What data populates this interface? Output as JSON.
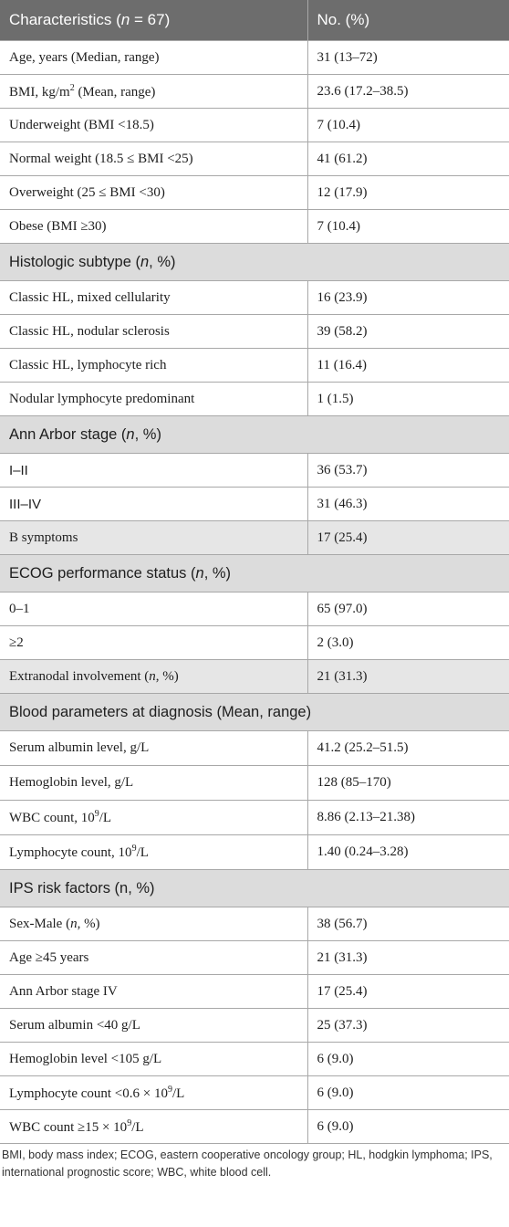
{
  "header": {
    "col1_pre": "Characteristics (",
    "col1_n": "n",
    "col1_post": " = 67)",
    "col2": "No. (%)"
  },
  "rows": [
    {
      "type": "row",
      "label": "Age, years (Median, range)",
      "value": "31 (13–72)"
    },
    {
      "type": "row",
      "label_pre": "BMI, kg/m",
      "label_sup": "2",
      "label_post": " (Mean, range)",
      "value": "23.6 (17.2–38.5)"
    },
    {
      "type": "row",
      "label": "Underweight (BMI <18.5)",
      "value": "7 (10.4)"
    },
    {
      "type": "row",
      "label": "Normal weight (18.5 ≤ BMI <25)",
      "value": "41 (61.2)"
    },
    {
      "type": "row",
      "label": "Overweight (25 ≤ BMI <30)",
      "value": "12 (17.9)"
    },
    {
      "type": "row",
      "label": "Obese (BMI ≥30)",
      "value": "7 (10.4)"
    },
    {
      "type": "section",
      "label_pre": "Histologic subtype (",
      "label_n": "n",
      "label_post": ", %)"
    },
    {
      "type": "row",
      "label": "Classic HL, mixed cellularity",
      "value": "16 (23.9)"
    },
    {
      "type": "row",
      "label": "Classic HL, nodular sclerosis",
      "value": "39 (58.2)"
    },
    {
      "type": "row",
      "label": "Classic HL, lymphocyte rich",
      "value": "11 (16.4)"
    },
    {
      "type": "row",
      "label": "Nodular lymphocyte predominant",
      "value": "1 (1.5)"
    },
    {
      "type": "section",
      "label_pre": "Ann Arbor stage (",
      "label_n": "n",
      "label_post": ", %)"
    },
    {
      "type": "row",
      "label": "I–II",
      "value": "36 (53.7)",
      "sans": true
    },
    {
      "type": "row",
      "label": "III–IV",
      "value": "31 (46.3)",
      "sans": true
    },
    {
      "type": "shade",
      "label": "B symptoms",
      "value": "17 (25.4)"
    },
    {
      "type": "section",
      "label_pre": "ECOG performance status (",
      "label_n": "n",
      "label_post": ", %)"
    },
    {
      "type": "row",
      "label": "0–1",
      "value": "65 (97.0)"
    },
    {
      "type": "row",
      "label": "≥2",
      "value": "2 (3.0)"
    },
    {
      "type": "shade",
      "label_pre": "Extranodal involvement (",
      "label_n": "n",
      "label_post": ", %)",
      "value": "21 (31.3)"
    },
    {
      "type": "section",
      "label": "Blood parameters at diagnosis (Mean, range)"
    },
    {
      "type": "row",
      "label": "Serum albumin level, g/L",
      "value": "41.2 (25.2–51.5)"
    },
    {
      "type": "row",
      "label": "Hemoglobin level, g/L",
      "value": "128 (85–170)"
    },
    {
      "type": "row",
      "label_pre": "WBC count, 10",
      "label_sup": "9",
      "label_post": "/L",
      "value": "8.86 (2.13–21.38)"
    },
    {
      "type": "row",
      "label_pre": "Lymphocyte count, 10",
      "label_sup": "9",
      "label_post": "/L",
      "value": "1.40 (0.24–3.28)"
    },
    {
      "type": "section",
      "label": "IPS risk factors (n, %)"
    },
    {
      "type": "row",
      "label_pre": "Sex-Male (",
      "label_n": "n",
      "label_post": ", %)",
      "value": "38 (56.7)"
    },
    {
      "type": "row",
      "label": "Age ≥45 years",
      "value": "21 (31.3)"
    },
    {
      "type": "row",
      "label": "Ann Arbor stage IV",
      "value": "17 (25.4)"
    },
    {
      "type": "row",
      "label": "Serum albumin <40 g/L",
      "value": "25 (37.3)"
    },
    {
      "type": "row",
      "label": "Hemoglobin level <105 g/L",
      "value": "6 (9.0)"
    },
    {
      "type": "row",
      "label_pre": "Lymphocyte count <0.6 × 10",
      "label_sup": "9",
      "label_post": "/L",
      "value": "6 (9.0)"
    },
    {
      "type": "row",
      "label_pre": "WBC count ≥15 × 10",
      "label_sup": "9",
      "label_post": "/L",
      "value": "6 (9.0)"
    }
  ],
  "footnote": "BMI, body mass index; ECOG, eastern cooperative oncology group; HL, hodgkin lymphoma; IPS, international prognostic score; WBC, white blood cell."
}
